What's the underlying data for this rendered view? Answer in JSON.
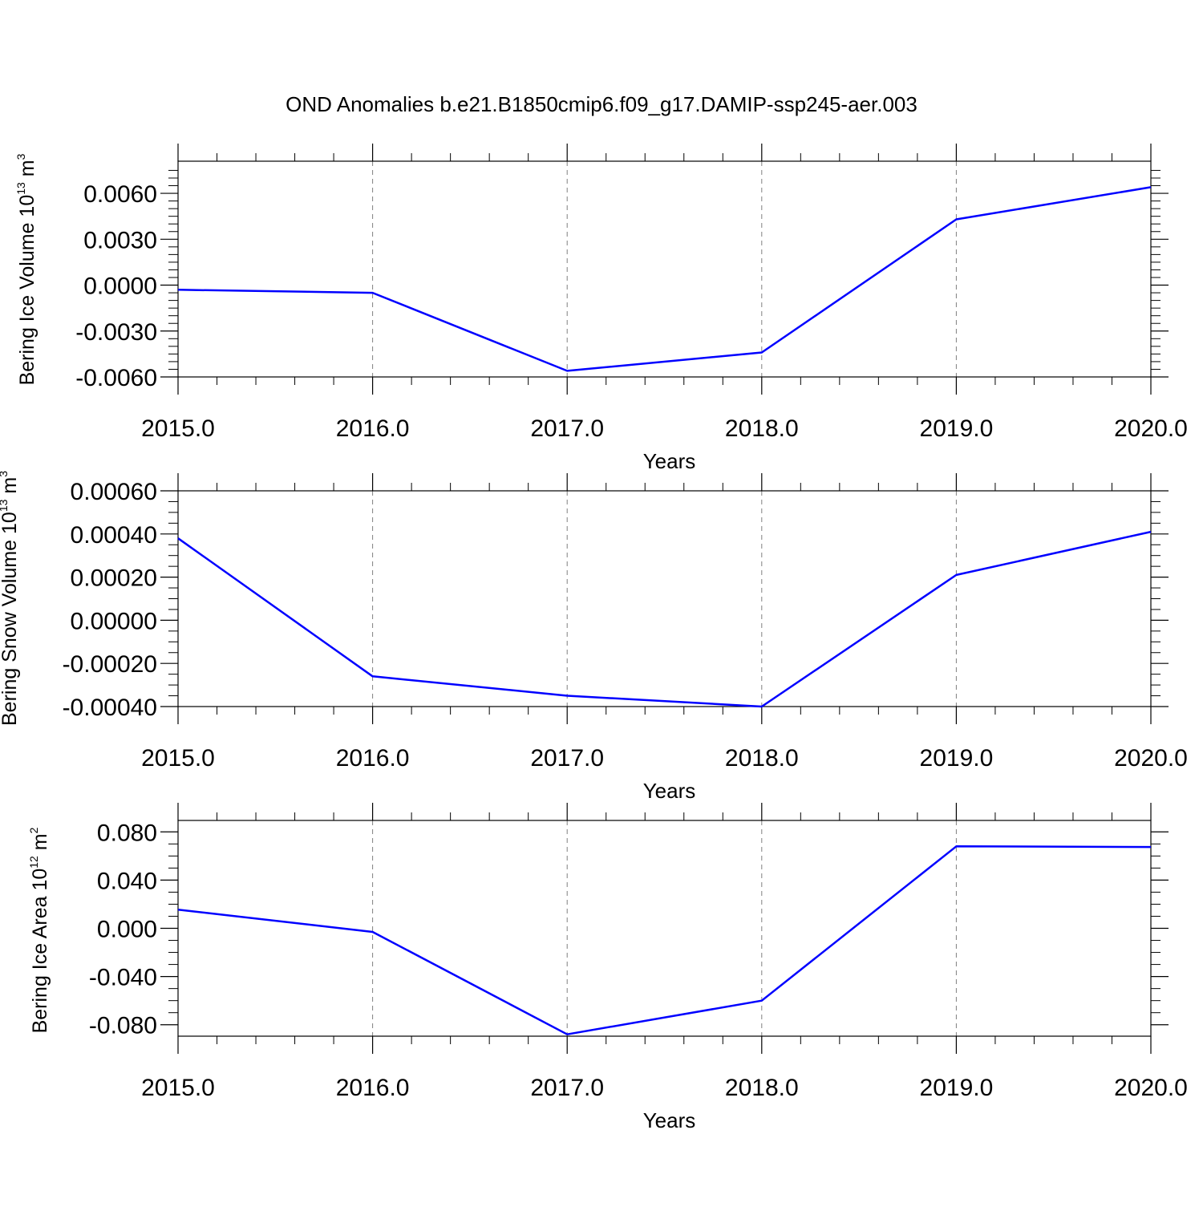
{
  "figure": {
    "title": "OND Anomalies b.e21.B1850cmip6.f09_g17.DAMIP-ssp245-aer.003"
  },
  "colors": {
    "series_line": "#0000ff",
    "frame": "#000000",
    "grid": "#808080",
    "background": "#ffffff"
  },
  "chart_data": [
    {
      "type": "line",
      "ylabel": {
        "text": "Bering Ice Volume 10",
        "sup1": "13",
        "mid": " m",
        "sup2": "3"
      },
      "xlabel": "Years",
      "x": [
        2015.0,
        2016.0,
        2017.0,
        2018.0,
        2019.0,
        2020.0
      ],
      "xticks": [
        "2015.0",
        "2016.0",
        "2017.0",
        "2018.0",
        "2019.0",
        "2020.0"
      ],
      "xlim": [
        2015.0,
        2020.0
      ],
      "y": [
        -0.0003,
        -0.0005,
        -0.0056,
        -0.0044,
        0.0043,
        0.0064
      ],
      "ylim": [
        -0.006,
        0.0081
      ],
      "yticks": [
        0.006,
        0.003,
        0.0,
        -0.003,
        -0.006
      ],
      "ytick_labels": [
        "0.0060",
        "0.0030",
        "0.0000",
        "-0.0030",
        "-0.0060"
      ],
      "yminor": [
        0.0075,
        0.007,
        0.0065,
        0.0055,
        0.005,
        0.0045,
        0.004,
        0.0035,
        0.0025,
        0.002,
        0.0015,
        0.001,
        0.0005,
        -0.0005,
        -0.001,
        -0.0015,
        -0.002,
        -0.0025,
        -0.0035,
        -0.004,
        -0.0045,
        -0.005,
        -0.0055
      ],
      "grid": "x-dashed"
    },
    {
      "type": "line",
      "ylabel": {
        "text": "Bering Snow Volume 10",
        "sup1": "13",
        "mid": " m",
        "sup2": "3"
      },
      "xlabel": "Years",
      "x": [
        2015.0,
        2016.0,
        2017.0,
        2018.0,
        2019.0,
        2020.0
      ],
      "xticks": [
        "2015.0",
        "2016.0",
        "2017.0",
        "2018.0",
        "2019.0",
        "2020.0"
      ],
      "xlim": [
        2015.0,
        2020.0
      ],
      "y": [
        0.00038,
        -0.00026,
        -0.00035,
        -0.0004,
        0.00021,
        0.00041
      ],
      "ylim": [
        -0.0004,
        0.0006
      ],
      "yticks": [
        0.0006,
        0.0004,
        0.0002,
        0.0,
        -0.0002,
        -0.0004
      ],
      "ytick_labels": [
        "0.00060",
        "0.00040",
        "0.00020",
        "0.00000",
        "-0.00020",
        "-0.00040"
      ],
      "yminor": [
        0.00055,
        0.0005,
        0.00045,
        0.00035,
        0.0003,
        0.00025,
        0.00015,
        0.0001,
        5e-05,
        -5e-05,
        -0.0001,
        -0.00015,
        -0.00025,
        -0.0003,
        -0.00035
      ],
      "grid": "x-dashed"
    },
    {
      "type": "line",
      "ylabel": {
        "text": "Bering Ice Area 10",
        "sup1": "12",
        "mid": " m",
        "sup2": "2"
      },
      "xlabel": "Years",
      "x": [
        2015.0,
        2016.0,
        2017.0,
        2018.0,
        2019.0,
        2020.0
      ],
      "xticks": [
        "2015.0",
        "2016.0",
        "2017.0",
        "2018.0",
        "2019.0",
        "2020.0"
      ],
      "xlim": [
        2015.0,
        2020.0
      ],
      "y": [
        0.0155,
        -0.003,
        -0.088,
        -0.06,
        0.068,
        0.0675
      ],
      "ylim": [
        -0.0895,
        0.0895
      ],
      "yticks": [
        0.08,
        0.04,
        0.0,
        -0.04,
        -0.08
      ],
      "ytick_labels": [
        "0.080",
        "0.040",
        "0.000",
        "-0.040",
        "-0.080"
      ],
      "yminor": [
        0.07,
        0.06,
        0.05,
        0.03,
        0.02,
        0.01,
        -0.01,
        -0.02,
        -0.03,
        -0.05,
        -0.06,
        -0.07
      ],
      "grid": "x-dashed"
    }
  ]
}
